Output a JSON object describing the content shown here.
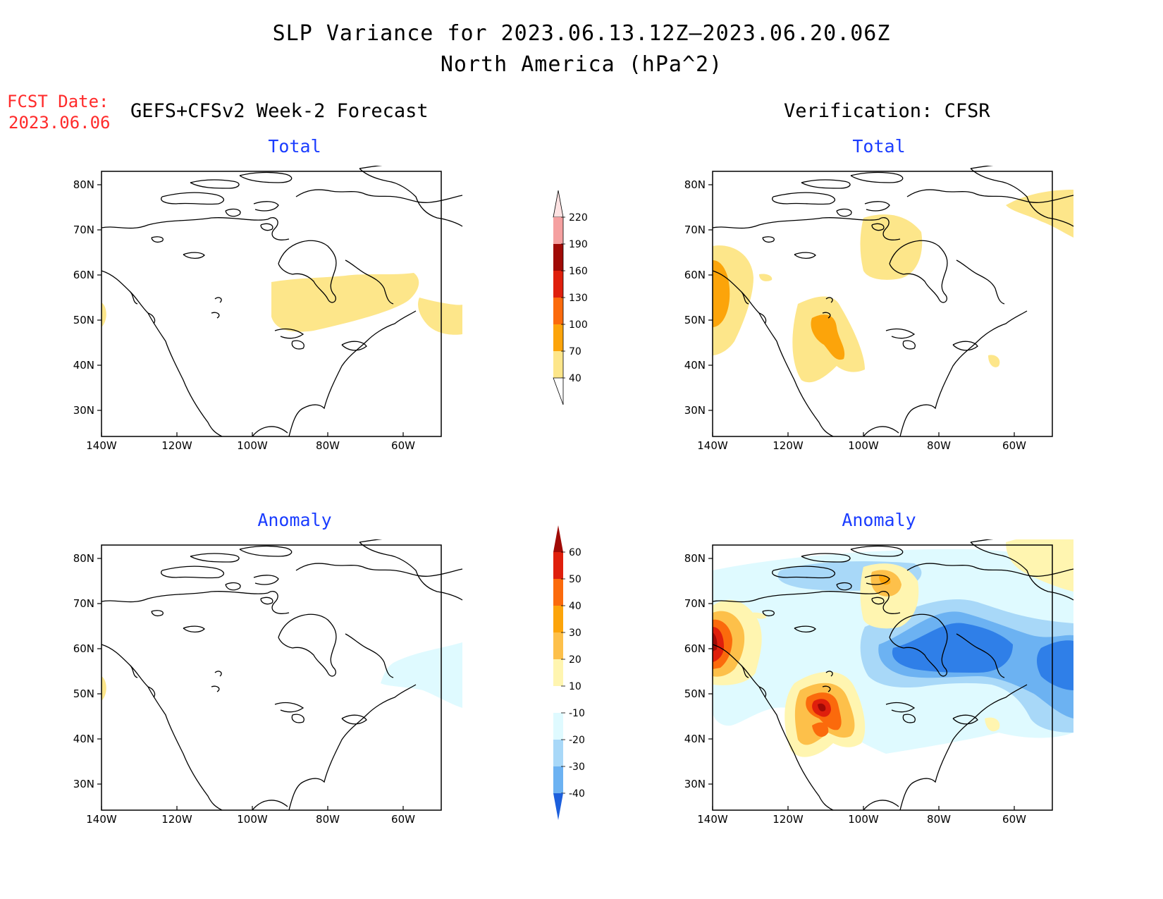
{
  "header": {
    "title_line1": "SLP Variance for 2023.06.13.12Z–2023.06.20.06Z",
    "title_line2": "North America (hPa^2)"
  },
  "fcst": {
    "label": "FCST Date:",
    "date": "2023.06.06"
  },
  "columns": {
    "left": "GEFS+CFSv2 Week-2 Forecast",
    "right": "Verification: CFSR"
  },
  "panels": {
    "fcst_total": "Total",
    "verif_total": "Total",
    "fcst_anom": "Anomaly",
    "verif_anom": "Anomaly"
  },
  "axes": {
    "lat_ticks": [
      "80N",
      "70N",
      "60N",
      "50N",
      "40N",
      "30N"
    ],
    "lon_ticks": [
      "140W",
      "120W",
      "100W",
      "80W",
      "60W"
    ]
  },
  "colorbars": {
    "total": {
      "levels": [
        "40",
        "70",
        "100",
        "130",
        "160",
        "190",
        "220"
      ],
      "colors": [
        "#fde68a",
        "#fca40a",
        "#fb6a0c",
        "#df1f0c",
        "#a00a06",
        "#f5a0a0",
        "#fde2e2"
      ]
    },
    "anomaly": {
      "levels": [
        "60",
        "50",
        "40",
        "30",
        "20",
        "10",
        "-10",
        "-20",
        "-30",
        "-40"
      ],
      "colors": [
        "#a00a06",
        "#df1f0c",
        "#fb6a0c",
        "#fca40a",
        "#fdc04a",
        "#fff5b0",
        "#ffffff",
        "#dffaff",
        "#a8d8f8",
        "#6cb2f2",
        "#2f7fe8",
        "#1c5fdc"
      ]
    }
  }
}
